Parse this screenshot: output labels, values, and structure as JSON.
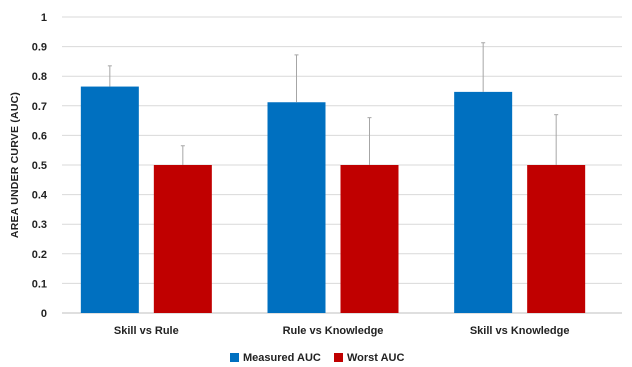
{
  "chart_data": {
    "type": "bar",
    "title": "",
    "xlabel": "",
    "ylabel": "AREA UNDER CURVE (AUC)",
    "ylim": [
      0,
      1
    ],
    "yticks": [
      "0",
      "0.1",
      "0.2",
      "0.3",
      "0.4",
      "0.5",
      "0.6",
      "0.7",
      "0.8",
      "0.9",
      "1"
    ],
    "grid": true,
    "legend_position": "bottom",
    "categories": [
      "Skill vs Rule",
      "Rule vs Knowledge",
      "Skill vs Knowledge"
    ],
    "series": [
      {
        "name": "Measured AUC",
        "color": "#0070c0",
        "values": [
          0.765,
          0.712,
          0.747
        ],
        "error_upper": [
          0.835,
          0.872,
          0.913
        ]
      },
      {
        "name": "Worst AUC",
        "color": "#c00000",
        "values": [
          0.5,
          0.5,
          0.5
        ],
        "error_upper": [
          0.565,
          0.66,
          0.67
        ]
      }
    ]
  }
}
